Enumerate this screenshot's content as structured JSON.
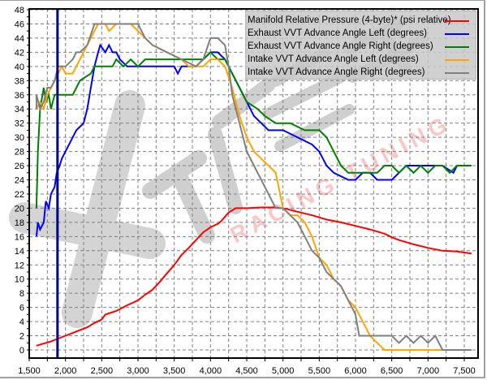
{
  "chart_data": {
    "type": "line",
    "title": "",
    "xlabel": "",
    "ylabel": "",
    "xlim": [
      1500,
      7500
    ],
    "ylim": [
      0,
      48
    ],
    "x_ticks": [
      "1,500",
      "2,000",
      "2,500",
      "3,000",
      "3,500",
      "4,000",
      "4,500",
      "5,000",
      "5,500",
      "6,000",
      "6,500",
      "7,000",
      "7,500"
    ],
    "y_ticks": [
      "0",
      "2",
      "4",
      "6",
      "8",
      "10",
      "12",
      "14",
      "16",
      "18",
      "20",
      "22",
      "24",
      "26",
      "28",
      "30",
      "32",
      "34",
      "36",
      "38",
      "40",
      "42",
      "44",
      "46",
      "48"
    ],
    "grid": true,
    "legend_position": "top-right",
    "cursor_rpm": 1890,
    "watermark": "XTREME RACING TUNING",
    "series": [
      {
        "name": "Manifold Relative Pressure (4-byte)* (psi relative)",
        "color": "#ff0000",
        "points": [
          [
            1600,
            0.6
          ],
          [
            1700,
            0.9
          ],
          [
            1800,
            1.2
          ],
          [
            1900,
            1.6
          ],
          [
            2000,
            2.0
          ],
          [
            2100,
            2.4
          ],
          [
            2200,
            2.8
          ],
          [
            2300,
            3.2
          ],
          [
            2400,
            3.8
          ],
          [
            2500,
            4.3
          ],
          [
            2550,
            5.0
          ],
          [
            2700,
            5.5
          ],
          [
            2850,
            6.3
          ],
          [
            3000,
            7.0
          ],
          [
            3100,
            7.8
          ],
          [
            3200,
            8.5
          ],
          [
            3300,
            9.6
          ],
          [
            3400,
            10.8
          ],
          [
            3500,
            12.0
          ],
          [
            3600,
            13.4
          ],
          [
            3700,
            14.4
          ],
          [
            3800,
            15.5
          ],
          [
            3900,
            16.6
          ],
          [
            4000,
            17.3
          ],
          [
            4100,
            17.8
          ],
          [
            4150,
            18.2
          ],
          [
            4250,
            19.4
          ],
          [
            4350,
            20.0
          ],
          [
            4500,
            20.0
          ],
          [
            4700,
            20.1
          ],
          [
            4900,
            20.1
          ],
          [
            5050,
            19.9
          ],
          [
            5200,
            19.5
          ],
          [
            5400,
            19.0
          ],
          [
            5600,
            18.4
          ],
          [
            5800,
            18.0
          ],
          [
            6000,
            17.5
          ],
          [
            6200,
            17.0
          ],
          [
            6400,
            16.4
          ],
          [
            6500,
            15.9
          ],
          [
            6600,
            15.5
          ],
          [
            6800,
            14.9
          ],
          [
            7000,
            14.4
          ],
          [
            7200,
            14.0
          ],
          [
            7400,
            13.9
          ],
          [
            7600,
            13.6
          ]
        ]
      },
      {
        "name": "Exhaust VVT Advance Angle Left (degrees)",
        "color": "#0000ff",
        "points": [
          [
            1600,
            16
          ],
          [
            1620,
            18
          ],
          [
            1650,
            17
          ],
          [
            1700,
            18
          ],
          [
            1730,
            21
          ],
          [
            1770,
            20
          ],
          [
            1800,
            22
          ],
          [
            1850,
            23
          ],
          [
            1880,
            25
          ],
          [
            1920,
            26
          ],
          [
            1950,
            27
          ],
          [
            2050,
            29
          ],
          [
            2100,
            30
          ],
          [
            2150,
            31
          ],
          [
            2250,
            32
          ],
          [
            2300,
            34
          ],
          [
            2350,
            37
          ],
          [
            2400,
            40
          ],
          [
            2450,
            42
          ],
          [
            2480,
            43
          ],
          [
            2550,
            42
          ],
          [
            2600,
            43
          ],
          [
            2650,
            42
          ],
          [
            2700,
            42
          ],
          [
            2750,
            41
          ],
          [
            2850,
            40
          ],
          [
            3000,
            40
          ],
          [
            3200,
            40
          ],
          [
            3400,
            40
          ],
          [
            3500,
            40
          ],
          [
            3550,
            39
          ],
          [
            3600,
            40
          ],
          [
            3800,
            40
          ],
          [
            3900,
            41
          ],
          [
            4000,
            42
          ],
          [
            4100,
            42
          ],
          [
            4200,
            41
          ],
          [
            4300,
            39
          ],
          [
            4400,
            37
          ],
          [
            4500,
            35
          ],
          [
            4600,
            33
          ],
          [
            4700,
            32
          ],
          [
            4800,
            31
          ],
          [
            5000,
            31
          ],
          [
            5200,
            30
          ],
          [
            5400,
            29
          ],
          [
            5500,
            28
          ],
          [
            5600,
            26
          ],
          [
            5700,
            25
          ],
          [
            5900,
            24
          ],
          [
            6000,
            24
          ],
          [
            6100,
            25
          ],
          [
            6200,
            25
          ],
          [
            6300,
            24
          ],
          [
            6400,
            24
          ],
          [
            6500,
            24
          ],
          [
            6600,
            25
          ],
          [
            6700,
            26
          ],
          [
            7000,
            26
          ],
          [
            7200,
            26
          ],
          [
            7350,
            25
          ],
          [
            7400,
            26
          ],
          [
            7600,
            26
          ]
        ]
      },
      {
        "name": "Exhaust VVT Advance Angle Right (degrees)",
        "color": "#008000",
        "points": [
          [
            1600,
            20
          ],
          [
            1620,
            28
          ],
          [
            1650,
            34
          ],
          [
            1700,
            37
          ],
          [
            1730,
            35
          ],
          [
            1770,
            36
          ],
          [
            1800,
            34
          ],
          [
            1850,
            36
          ],
          [
            1880,
            36
          ],
          [
            2000,
            36
          ],
          [
            2100,
            36
          ],
          [
            2150,
            37
          ],
          [
            2200,
            38
          ],
          [
            2350,
            39
          ],
          [
            2400,
            40
          ],
          [
            2500,
            40
          ],
          [
            2650,
            40
          ],
          [
            2700,
            41
          ],
          [
            2800,
            40
          ],
          [
            2900,
            41
          ],
          [
            3000,
            40
          ],
          [
            3100,
            41
          ],
          [
            3200,
            41
          ],
          [
            3400,
            41
          ],
          [
            3600,
            41
          ],
          [
            3800,
            41
          ],
          [
            3900,
            41
          ],
          [
            4000,
            42
          ],
          [
            4100,
            41
          ],
          [
            4200,
            41
          ],
          [
            4300,
            39
          ],
          [
            4400,
            37
          ],
          [
            4500,
            35
          ],
          [
            4650,
            34
          ],
          [
            4750,
            33
          ],
          [
            4900,
            32
          ],
          [
            5100,
            32
          ],
          [
            5300,
            31
          ],
          [
            5500,
            31
          ],
          [
            5600,
            30
          ],
          [
            5700,
            28
          ],
          [
            5800,
            26
          ],
          [
            5900,
            25
          ],
          [
            6100,
            25
          ],
          [
            6300,
            25
          ],
          [
            6400,
            26
          ],
          [
            6500,
            26
          ],
          [
            6600,
            25
          ],
          [
            6700,
            26
          ],
          [
            6800,
            25
          ],
          [
            6900,
            26
          ],
          [
            7000,
            25
          ],
          [
            7100,
            26
          ],
          [
            7200,
            26
          ],
          [
            7300,
            25
          ],
          [
            7400,
            26
          ],
          [
            7600,
            26
          ]
        ]
      },
      {
        "name": "Intake VVT Advance Angle Left (degrees)",
        "color": "#ffa500",
        "points": [
          [
            1600,
            34
          ],
          [
            1650,
            35
          ],
          [
            1700,
            34
          ],
          [
            1750,
            36
          ],
          [
            1800,
            37
          ],
          [
            1850,
            38
          ],
          [
            1900,
            39
          ],
          [
            1950,
            40
          ],
          [
            2000,
            39
          ],
          [
            2100,
            39
          ],
          [
            2200,
            41
          ],
          [
            2300,
            43
          ],
          [
            2400,
            45
          ],
          [
            2450,
            46
          ],
          [
            2550,
            46
          ],
          [
            2600,
            45
          ],
          [
            2700,
            46
          ],
          [
            2900,
            46
          ],
          [
            3000,
            45
          ],
          [
            3100,
            44
          ],
          [
            3200,
            43
          ],
          [
            3400,
            42
          ],
          [
            3600,
            41
          ],
          [
            3700,
            40
          ],
          [
            3800,
            40
          ],
          [
            3900,
            40
          ],
          [
            4000,
            41
          ],
          [
            4100,
            41
          ],
          [
            4200,
            40
          ],
          [
            4300,
            37
          ],
          [
            4400,
            33
          ],
          [
            4500,
            30
          ],
          [
            4600,
            28
          ],
          [
            4700,
            27
          ],
          [
            4800,
            26
          ],
          [
            4900,
            25
          ],
          [
            5000,
            20
          ],
          [
            5100,
            19
          ],
          [
            5200,
            19
          ],
          [
            5300,
            18
          ],
          [
            5400,
            16
          ],
          [
            5500,
            13
          ],
          [
            5600,
            12
          ],
          [
            5700,
            10
          ],
          [
            5800,
            9
          ],
          [
            5900,
            7
          ],
          [
            6000,
            6
          ],
          [
            6100,
            4
          ],
          [
            6200,
            2
          ],
          [
            6300,
            1
          ],
          [
            6400,
            0
          ],
          [
            6600,
            0
          ],
          [
            7000,
            0
          ],
          [
            7300,
            0
          ],
          [
            7600,
            0
          ]
        ]
      },
      {
        "name": "Intake VVT Advance Angle Right (degrees)",
        "color": "#808080",
        "points": [
          [
            1600,
            34
          ],
          [
            1600,
            36
          ],
          [
            1650,
            34
          ],
          [
            1700,
            35
          ],
          [
            1750,
            37
          ],
          [
            1800,
            37
          ],
          [
            1850,
            38
          ],
          [
            1900,
            40
          ],
          [
            2000,
            40
          ],
          [
            2100,
            41
          ],
          [
            2150,
            42
          ],
          [
            2200,
            42
          ],
          [
            2300,
            43
          ],
          [
            2400,
            46
          ],
          [
            2500,
            46
          ],
          [
            2700,
            46
          ],
          [
            2800,
            46
          ],
          [
            3000,
            46
          ],
          [
            3100,
            44
          ],
          [
            3200,
            43
          ],
          [
            3400,
            42
          ],
          [
            3600,
            41
          ],
          [
            3800,
            40
          ],
          [
            3900,
            41
          ],
          [
            4000,
            44
          ],
          [
            4100,
            44
          ],
          [
            4200,
            43
          ],
          [
            4250,
            40
          ],
          [
            4300,
            36
          ],
          [
            4400,
            32
          ],
          [
            4500,
            28
          ],
          [
            4600,
            26
          ],
          [
            4700,
            24
          ],
          [
            4800,
            22
          ],
          [
            4900,
            20
          ],
          [
            5000,
            20
          ],
          [
            5100,
            19
          ],
          [
            5200,
            18
          ],
          [
            5300,
            16
          ],
          [
            5400,
            14
          ],
          [
            5500,
            13
          ],
          [
            5600,
            11
          ],
          [
            5700,
            10
          ],
          [
            5800,
            9
          ],
          [
            5900,
            7
          ],
          [
            6000,
            5
          ],
          [
            6050,
            2
          ],
          [
            6100,
            2
          ],
          [
            6300,
            2
          ],
          [
            6500,
            2
          ],
          [
            6600,
            1
          ],
          [
            6700,
            2
          ],
          [
            6800,
            1
          ],
          [
            6900,
            2
          ],
          [
            7000,
            1
          ],
          [
            7100,
            2
          ],
          [
            7200,
            0
          ],
          [
            7400,
            0
          ],
          [
            7600,
            0
          ]
        ]
      }
    ]
  },
  "legend": {
    "items": [
      {
        "label": "Manifold Relative Pressure (4-byte)* (psi relative)",
        "color": "#ff0000"
      },
      {
        "label": "Exhaust VVT Advance Angle Left (degrees)",
        "color": "#0000ff"
      },
      {
        "label": "Exhaust VVT Advance Angle Right (degrees)",
        "color": "#008000"
      },
      {
        "label": "Intake VVT Advance Angle Left (degrees)",
        "color": "#ffa500"
      },
      {
        "label": "Intake VVT Advance Angle Right (degrees)",
        "color": "#808080"
      }
    ]
  },
  "colors": {
    "cursor": "#00008b",
    "grid": "#808080",
    "axis": "#000000",
    "watermark_gray": "#cfcfcf",
    "watermark_pink": "#f8c8c8"
  }
}
